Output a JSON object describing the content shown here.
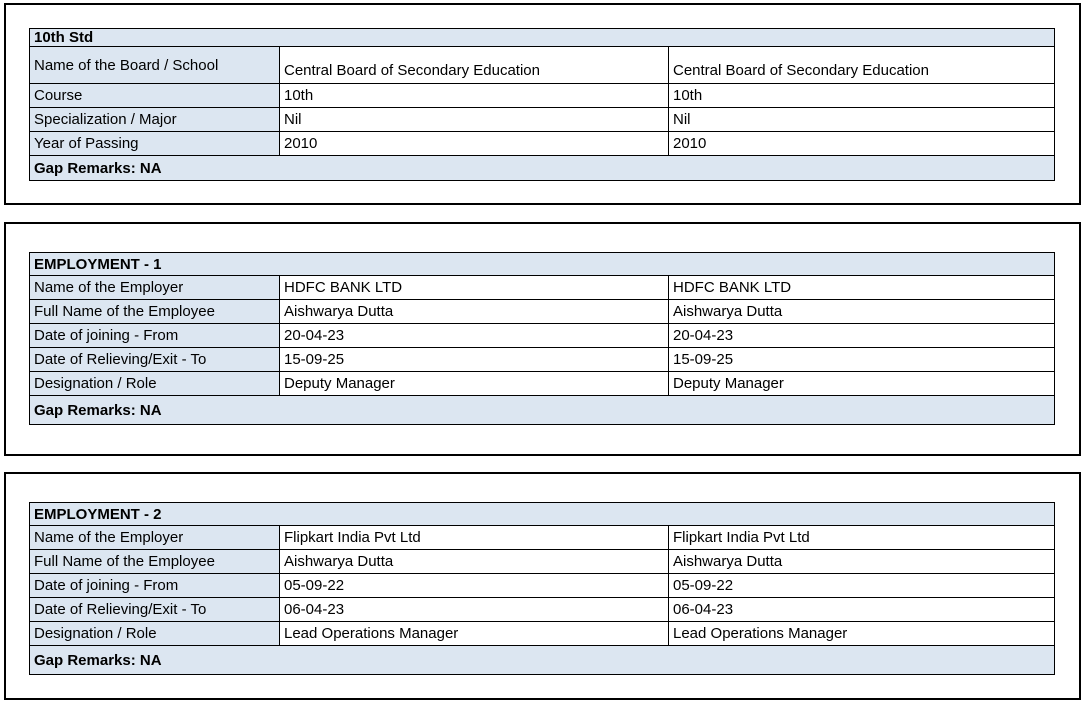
{
  "colors": {
    "cell_fill_blue": "#dce6f1",
    "cell_fill_white": "#ffffff",
    "border": "#000000",
    "text": "#000000"
  },
  "sections": [
    {
      "title": "10th Std",
      "gap_remarks": "Gap Remarks: NA",
      "rows": [
        {
          "label": "Name of the Board / School",
          "value1": "Central Board of Secondary Education",
          "value2": "Central Board of Secondary Education"
        },
        {
          "label": "Course",
          "value1": "10th",
          "value2": "10th"
        },
        {
          "label": "Specialization / Major",
          "value1": "Nil",
          "value2": "Nil"
        },
        {
          "label": "Year of Passing",
          "value1": "2010",
          "value2": "2010"
        }
      ]
    },
    {
      "title": "EMPLOYMENT - 1",
      "gap_remarks": "Gap Remarks: NA",
      "rows": [
        {
          "label": "Name of the Employer",
          "value1": "HDFC BANK LTD",
          "value2": "HDFC BANK LTD"
        },
        {
          "label": "Full Name of the Employee",
          "value1": "Aishwarya Dutta",
          "value2": "Aishwarya Dutta"
        },
        {
          "label": "Date of joining - From",
          "value1": "20-04-23",
          "value2": "20-04-23"
        },
        {
          "label": "Date of Relieving/Exit - To",
          "value1": "15-09-25",
          "value2": "15-09-25"
        },
        {
          "label": "Designation / Role",
          "value1": "Deputy Manager",
          "value2": "Deputy Manager"
        }
      ]
    },
    {
      "title": "EMPLOYMENT - 2",
      "gap_remarks": "Gap Remarks: NA",
      "rows": [
        {
          "label": "Name of the Employer",
          "value1": "Flipkart India Pvt Ltd",
          "value2": "Flipkart India Pvt Ltd"
        },
        {
          "label": "Full Name of the Employee",
          "value1": "Aishwarya Dutta",
          "value2": "Aishwarya Dutta"
        },
        {
          "label": "Date of joining - From",
          "value1": "05-09-22",
          "value2": "05-09-22"
        },
        {
          "label": "Date of Relieving/Exit - To",
          "value1": "06-04-23",
          "value2": "06-04-23"
        },
        {
          "label": "Designation / Role",
          "value1": "Lead Operations Manager",
          "value2": "Lead Operations Manager"
        }
      ]
    }
  ]
}
